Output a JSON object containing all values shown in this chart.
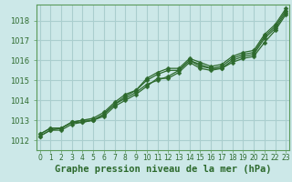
{
  "title": "Graphe pression niveau de la mer (hPa)",
  "xlabel_hours": [
    0,
    1,
    2,
    3,
    4,
    5,
    6,
    7,
    8,
    9,
    10,
    11,
    12,
    13,
    14,
    15,
    16,
    17,
    18,
    19,
    20,
    21,
    22,
    23
  ],
  "ylim": [
    1011.5,
    1018.8
  ],
  "xlim": [
    -0.3,
    23.3
  ],
  "yticks": [
    1012,
    1013,
    1014,
    1015,
    1016,
    1017,
    1018
  ],
  "background_color": "#cce8e8",
  "grid_color": "#aacece",
  "line_color": "#2d6a2d",
  "series": [
    [
      1012.3,
      1012.6,
      1012.6,
      1012.9,
      1012.9,
      1013.0,
      1013.3,
      1013.8,
      1014.1,
      1014.4,
      1014.8,
      1015.0,
      1015.2,
      1015.5,
      1016.0,
      1015.7,
      1015.6,
      1015.6,
      1016.0,
      1016.2,
      1016.3,
      1017.1,
      1017.6,
      1018.4
    ],
    [
      1012.3,
      1012.6,
      1012.6,
      1012.9,
      1013.0,
      1013.0,
      1013.3,
      1013.8,
      1014.2,
      1014.5,
      1015.0,
      1015.3,
      1015.5,
      1015.5,
      1016.0,
      1015.8,
      1015.6,
      1015.7,
      1016.1,
      1016.3,
      1016.4,
      1017.2,
      1017.7,
      1018.5
    ],
    [
      1012.2,
      1012.5,
      1012.6,
      1012.9,
      1013.0,
      1013.1,
      1013.4,
      1013.9,
      1014.3,
      1014.5,
      1015.1,
      1015.4,
      1015.6,
      1015.6,
      1016.1,
      1015.9,
      1015.7,
      1015.8,
      1016.2,
      1016.4,
      1016.5,
      1017.3,
      1017.8,
      1018.6
    ],
    [
      1012.2,
      1012.5,
      1012.5,
      1012.8,
      1012.9,
      1013.0,
      1013.2,
      1013.7,
      1014.0,
      1014.3,
      1014.7,
      1015.1,
      1015.1,
      1015.4,
      1015.9,
      1015.6,
      1015.5,
      1015.6,
      1015.9,
      1016.1,
      1016.2,
      1016.9,
      1017.5,
      1018.3
    ]
  ],
  "marker": "D",
  "markersize": 2.5,
  "linewidth": 0.9,
  "title_fontsize": 7.5,
  "tick_fontsize": 6.0,
  "title_color": "#2d6a2d",
  "tick_color": "#2d6a2d",
  "spine_color": "#5a9a5a"
}
